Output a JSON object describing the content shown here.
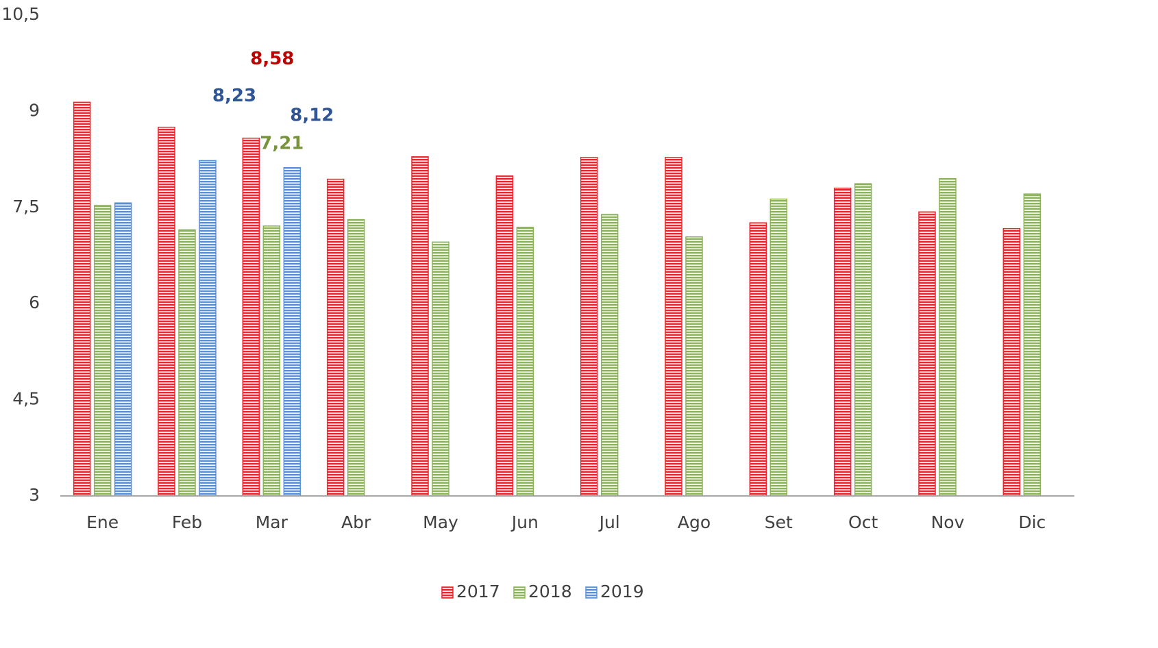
{
  "chart_data": {
    "type": "bar",
    "categories": [
      "Ene",
      "Feb",
      "Mar",
      "Abr",
      "May",
      "Jun",
      "Jul",
      "Ago",
      "Set",
      "Oct",
      "Nov",
      "Dic"
    ],
    "series": [
      {
        "name": "2017",
        "color": "#e8262d",
        "label_color": "#c00000",
        "values": [
          9.14,
          8.75,
          8.58,
          7.94,
          8.29,
          7.99,
          8.28,
          8.28,
          7.26,
          7.8,
          7.43,
          7.17
        ],
        "value_labels": [
          null,
          null,
          "8,58",
          null,
          null,
          null,
          null,
          null,
          null,
          null,
          null,
          null
        ]
      },
      {
        "name": "2018",
        "color": "#8db35a",
        "label_color": "#77933c",
        "values": [
          7.53,
          7.15,
          7.21,
          7.31,
          6.96,
          7.19,
          7.39,
          7.04,
          7.63,
          7.87,
          7.95,
          7.71
        ],
        "value_labels": [
          null,
          null,
          "7,21",
          null,
          null,
          null,
          null,
          null,
          null,
          null,
          null,
          null
        ]
      },
      {
        "name": "2019",
        "color": "#5b8fd5",
        "label_color": "#2f5597",
        "values": [
          7.57,
          8.23,
          8.12,
          null,
          null,
          null,
          null,
          null,
          null,
          null,
          null,
          null
        ],
        "value_labels": [
          null,
          "8,23",
          "8,12",
          null,
          null,
          null,
          null,
          null,
          null,
          null,
          null,
          null
        ]
      }
    ],
    "ylim": [
      3,
      10.5
    ],
    "yticks": [
      3,
      {
        "value": 4.5,
        "label": "4,5"
      },
      6,
      {
        "value": 7.5,
        "label": "7,5"
      },
      9,
      {
        "value": 10.5,
        "label": "10,5"
      }
    ],
    "grid": false,
    "legend": "bottom"
  }
}
